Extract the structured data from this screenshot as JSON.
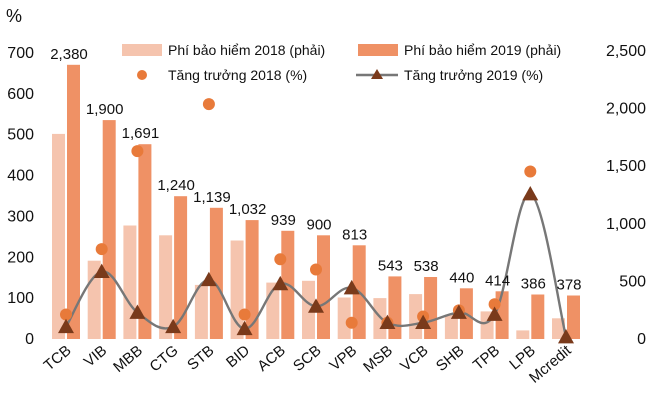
{
  "chart_data": {
    "type": "bar",
    "unit_label": "%",
    "categories": [
      "TCB",
      "VIB",
      "MBB",
      "CTG",
      "STB",
      "BID",
      "ACB",
      "SCB",
      "VPB",
      "MSB",
      "VCB",
      "SHB",
      "TPB",
      "LPB",
      "Mcredit"
    ],
    "left_axis": {
      "ylim": [
        0,
        700
      ],
      "ticks": [
        "0",
        "100",
        "200",
        "300",
        "400",
        "500",
        "600",
        "700"
      ]
    },
    "right_axis": {
      "ylim": [
        0,
        2500
      ],
      "ticks": [
        "0",
        "500",
        "1,000",
        "1,500",
        "2,000",
        "2,500"
      ]
    },
    "series": [
      {
        "name": "Phí bảo hiểm 2018 (phải)",
        "kind": "bar",
        "axis": "right",
        "color": "#f5c4ae",
        "values": [
          1780,
          680,
          985,
          900,
          470,
          855,
          490,
          505,
          360,
          355,
          390,
          210,
          240,
          75,
          180
        ]
      },
      {
        "name": "Phí bảo hiểm 2019 (phải)",
        "kind": "bar",
        "axis": "right",
        "color": "#ef9165",
        "values": [
          2380,
          1900,
          1691,
          1240,
          1139,
          1032,
          939,
          900,
          813,
          543,
          538,
          440,
          414,
          386,
          378
        ]
      },
      {
        "name": "Tăng trưởng 2018 (%)",
        "kind": "dot",
        "axis": "left",
        "color": "#e87a3a",
        "values": [
          60,
          220,
          460,
          null,
          575,
          60,
          195,
          170,
          40,
          40,
          55,
          70,
          85,
          410,
          null
        ]
      },
      {
        "name": "Tăng trưởng 2019 (%)",
        "kind": "line",
        "axis": "left",
        "color": "#777777",
        "marker_color": "#7a3a1b",
        "values": [
          30,
          165,
          65,
          30,
          145,
          25,
          135,
          80,
          125,
          40,
          40,
          65,
          60,
          355,
          5
        ]
      }
    ],
    "data_labels": [
      "2,380",
      "1,900",
      "1,691",
      "1,240",
      "1,139",
      "1,032",
      "939",
      "900",
      "813",
      "543",
      "538",
      "440",
      "414",
      "386",
      "378"
    ],
    "legend_position": "top",
    "grid": false
  }
}
